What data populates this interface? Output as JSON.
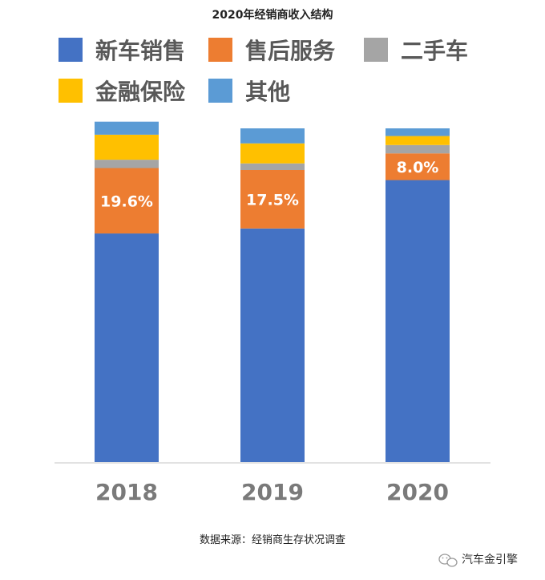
{
  "chart_data": {
    "type": "bar",
    "stacked": true,
    "title": "2020年经销商收入结构",
    "categories": [
      "2018",
      "2019",
      "2020"
    ],
    "series": [
      {
        "name": "新车销售",
        "color": "#4472C4",
        "values": [
          68.5,
          70.0,
          84.5
        ]
      },
      {
        "name": "售后服务",
        "color": "#ED7D31",
        "values": [
          19.6,
          17.5,
          8.0
        ]
      },
      {
        "name": "二手车",
        "color": "#A5A5A5",
        "values": [
          2.5,
          2.0,
          2.5
        ]
      },
      {
        "name": "金融保险",
        "color": "#FFC000",
        "values": [
          7.5,
          6.0,
          2.7
        ]
      },
      {
        "name": "其他",
        "color": "#5B9BD5",
        "values": [
          3.9,
          4.5,
          2.3
        ]
      }
    ],
    "data_labels": {
      "售后服务": [
        "19.6%",
        "17.5%",
        "8.0%"
      ]
    },
    "ylim": [
      0,
      100
    ],
    "grid": false,
    "legend_position": "top"
  },
  "footer": {
    "source": "数据来源：经销商生存状况调查",
    "brand": "汽车金引擎",
    "brand_icon": "wechat-icon"
  }
}
